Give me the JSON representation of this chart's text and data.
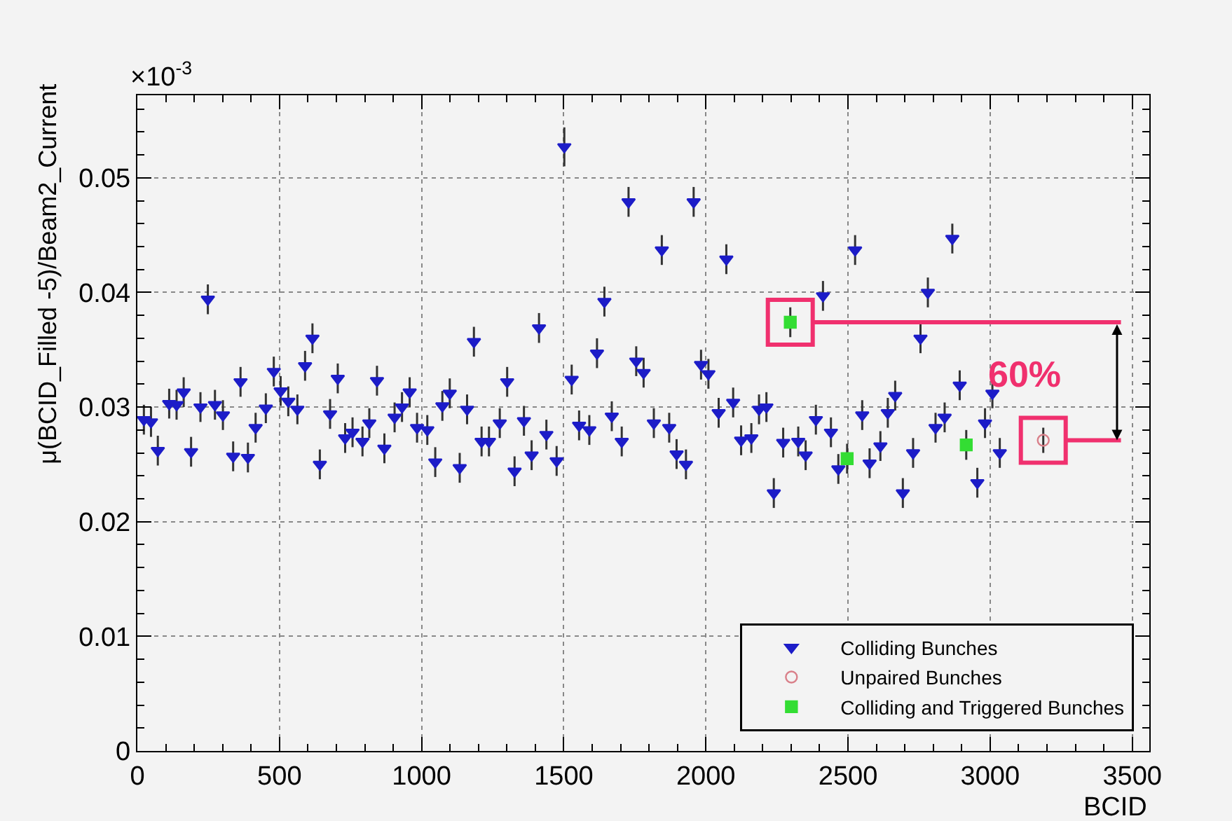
{
  "chart_data": {
    "type": "scatter",
    "xlabel": "BCID",
    "ylabel": "μ(BCID_Filled -5)/Beam2_Current",
    "xlim": [
      0,
      3560
    ],
    "xticks": [
      0,
      500,
      1000,
      1500,
      2000,
      2500,
      3000,
      3500
    ],
    "ylim": [
      0,
      0.0572
    ],
    "yticks": [
      0,
      0.01,
      0.02,
      0.03,
      0.04,
      0.05
    ],
    "grid": true,
    "legend": "bottom right",
    "annotations": [
      "×10$^{-3}$",
      "60%"
    ],
    "series": [
      {
        "name": "Colliding Bunches",
        "color": "#1c1cc8",
        "marker": "triangle",
        "x": [
          23,
          48,
          72,
          112,
          138,
          163,
          189,
          222,
          248,
          273,
          301,
          337,
          363,
          389,
          416,
          452,
          480,
          504,
          531,
          563,
          590,
          616,
          642,
          678,
          705,
          731,
          757,
          792,
          816,
          843,
          869,
          905,
          931,
          958,
          984,
          1020,
          1048,
          1073,
          1099,
          1134,
          1160,
          1184,
          1211,
          1237,
          1275,
          1301,
          1327,
          1360,
          1387,
          1413,
          1439,
          1475,
          1502,
          1528,
          1554,
          1590,
          1617,
          1643,
          1669,
          1704,
          1728,
          1755,
          1781,
          1817,
          1845,
          1871,
          1897,
          1930,
          1957,
          1983,
          2009,
          2045,
          2072,
          2096,
          2124,
          2160,
          2187,
          2213,
          2239,
          2272,
          2325,
          2351,
          2387,
          2412,
          2440,
          2466,
          2525,
          2550,
          2576,
          2614,
          2640,
          2666,
          2693,
          2729,
          2755,
          2781,
          2808,
          2840,
          2867,
          2893,
          2955,
          2982,
          3008,
          3034
        ],
        "values": [
          0.0289,
          0.0287,
          0.0262,
          0.0303,
          0.0302,
          0.0313,
          0.0261,
          0.03,
          0.0394,
          0.0302,
          0.0293,
          0.0257,
          0.0322,
          0.0256,
          0.0282,
          0.0299,
          0.0331,
          0.0314,
          0.0305,
          0.0298,
          0.0336,
          0.036,
          0.025,
          0.0294,
          0.0325,
          0.0273,
          0.0278,
          0.027,
          0.0286,
          0.0323,
          0.0264,
          0.0291,
          0.03,
          0.0313,
          0.0282,
          0.028,
          0.0252,
          0.0301,
          0.0312,
          0.0247,
          0.0298,
          0.0357,
          0.027,
          0.027,
          0.0286,
          0.0322,
          0.0244,
          0.0288,
          0.0258,
          0.0369,
          0.0276,
          0.0253,
          0.0527,
          0.0324,
          0.0284,
          0.028,
          0.0347,
          0.0392,
          0.0292,
          0.027,
          0.0479,
          0.034,
          0.033,
          0.0286,
          0.0437,
          0.0282,
          0.0259,
          0.025,
          0.0479,
          0.0337,
          0.0329,
          0.0295,
          0.0429,
          0.0304,
          0.0271,
          0.0273,
          0.0298,
          0.03,
          0.0225,
          0.0269,
          0.027,
          0.0258,
          0.0289,
          0.0397,
          0.0278,
          0.0246,
          0.0437,
          0.0293,
          0.0251,
          0.0266,
          0.0295,
          0.031,
          0.0225,
          0.026,
          0.036,
          0.04,
          0.0282,
          0.0291,
          0.0447,
          0.0319,
          0.0234,
          0.0286,
          0.0312,
          0.026
        ],
        "errors": [
          0.0013,
          0.0013,
          0.0013,
          0.0013,
          0.0013,
          0.0013,
          0.0013,
          0.0013,
          0.0013,
          0.0013,
          0.0013,
          0.0013,
          0.0013,
          0.0013,
          0.0013,
          0.0013,
          0.0013,
          0.0013,
          0.0013,
          0.0013,
          0.0013,
          0.0013,
          0.0013,
          0.0013,
          0.0013,
          0.0013,
          0.0013,
          0.0013,
          0.0013,
          0.0013,
          0.0013,
          0.0013,
          0.0013,
          0.0013,
          0.0013,
          0.0013,
          0.0013,
          0.0013,
          0.0013,
          0.0013,
          0.0013,
          0.0013,
          0.0013,
          0.0013,
          0.0013,
          0.0013,
          0.0013,
          0.0013,
          0.0013,
          0.0013,
          0.0013,
          0.0013,
          0.0017,
          0.0013,
          0.0013,
          0.0013,
          0.0013,
          0.0013,
          0.0013,
          0.0013,
          0.0013,
          0.0013,
          0.0013,
          0.0013,
          0.0013,
          0.0013,
          0.0013,
          0.0013,
          0.0013,
          0.0013,
          0.0013,
          0.0013,
          0.0013,
          0.0013,
          0.0013,
          0.0013,
          0.0013,
          0.0013,
          0.0013,
          0.0013,
          0.0013,
          0.0013,
          0.0013,
          0.0013,
          0.0013,
          0.0013,
          0.0013,
          0.0013,
          0.0013,
          0.0013,
          0.0013,
          0.0013,
          0.0013,
          0.0013,
          0.0013,
          0.0013,
          0.0013,
          0.0013,
          0.0013,
          0.0013,
          0.0013,
          0.0013,
          0.0013,
          0.0013
        ]
      },
      {
        "name": "Unpaired Bunches",
        "color": "#d9808a",
        "marker": "circle",
        "x": [
          3187
        ],
        "values": [
          0.0271
        ],
        "errors": [
          0.0011
        ]
      },
      {
        "name": "Colliding and Triggered Bunches",
        "color": "#33dd33",
        "marker": "square",
        "x": [
          2297,
          2497,
          2916
        ],
        "values": [
          0.0374,
          0.0255,
          0.0267
        ],
        "errors": [
          0.0013,
          0.0013,
          0.0013
        ]
      }
    ]
  }
}
